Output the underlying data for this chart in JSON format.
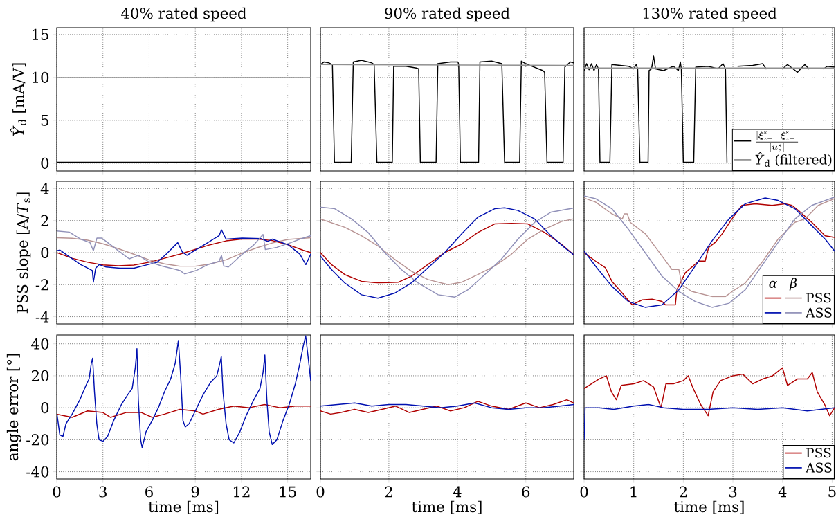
{
  "chart_data": [
    {
      "type": "line",
      "title": "40% rated speed",
      "ylabel": "*Ŷ*$_{d}$ [mA/V]",
      "xlim": [
        0,
        16.5
      ],
      "xticks": [
        0,
        3,
        6,
        9,
        12,
        15
      ],
      "ylim": [
        -0.9,
        15.8
      ],
      "yticks": [
        0,
        5,
        10,
        15
      ],
      "grid": true,
      "tick_labels": "y",
      "series": [
        {
          "color": "#000000",
          "x": [
            0,
            16.5
          ],
          "values": [
            0.1,
            0.1
          ]
        },
        {
          "color": "#909090",
          "x": [
            0,
            16.5
          ],
          "values": [
            10,
            10
          ]
        }
      ]
    },
    {
      "type": "line",
      "title": "90% rated speed",
      "xlim": [
        0,
        7.4
      ],
      "xticks": [
        0,
        2,
        4,
        6
      ],
      "ylim": [
        -0.9,
        15.8
      ],
      "yticks": [
        0,
        5,
        10,
        15
      ],
      "grid": true,
      "tick_labels": false,
      "series": [
        {
          "color": "#000000",
          "x": [
            0,
            0.1,
            0.25,
            0.35,
            0.41,
            0.9,
            0.96,
            1.2,
            1.5,
            1.57,
            1.65,
            2.1,
            2.14,
            2.5,
            2.8,
            2.87,
            2.92,
            3.38,
            3.43,
            3.8,
            4.02,
            4.04,
            4.09,
            4.62,
            4.66,
            5.0,
            5.3,
            5.38,
            5.82,
            5.87,
            6.0,
            6.5,
            6.55,
            6.62,
            7.09,
            7.14,
            7.3,
            7.4
          ],
          "values": [
            11.5,
            11.8,
            11.7,
            11.5,
            0.1,
            0.1,
            11.8,
            12.0,
            11.7,
            11.5,
            0.1,
            0.1,
            11.3,
            11.3,
            11.1,
            11.0,
            0.1,
            0.1,
            11.6,
            11.8,
            11.8,
            11.5,
            0.1,
            0.1,
            11.8,
            11.9,
            11.6,
            0.1,
            0.1,
            11.9,
            11.6,
            10.8,
            10.6,
            0.1,
            0.1,
            11.2,
            11.8,
            11.7
          ]
        },
        {
          "color": "#909090",
          "x": [
            0,
            7.4
          ],
          "values": [
            11.5,
            11.4
          ]
        }
      ]
    },
    {
      "type": "line",
      "title": "130% rated speed",
      "xlim": [
        0,
        5.05
      ],
      "xticks": [
        0,
        1,
        2,
        3,
        4,
        5
      ],
      "ylim": [
        -0.9,
        15.8
      ],
      "yticks": [
        0,
        5,
        10,
        15
      ],
      "grid": true,
      "tick_labels": false,
      "legend": "bottom right",
      "series": [
        {
          "name": "\\frac{|\\boldsymbol{\\xi}^{s}_{z+}-\\boldsymbol{\\xi}^{s}_{z-}|}{|\\boldsymbol{u}^{s}_{z}|}",
          "color": "#000000",
          "x": [
            0,
            0.05,
            0.1,
            0.15,
            0.2,
            0.25,
            0.29,
            0.32,
            0.52,
            0.56,
            0.9,
            1.0,
            1.05,
            1.08,
            1.125,
            1.29,
            1.31,
            1.36,
            1.4,
            1.44,
            1.6,
            1.8,
            1.9,
            1.94,
            1.96,
            2.0,
            2.21,
            2.25,
            2.5,
            2.7,
            2.8,
            2.85,
            2.88,
            3.07,
            3.1,
            3.4,
            3.6,
            3.67,
            3.7,
            3.97,
            4.0,
            4.1,
            4.3,
            4.45,
            4.53,
            4.56,
            4.8,
            4.83,
            4.9,
            5.05
          ],
          "values": [
            10.8,
            11.6,
            10.9,
            11.6,
            10.8,
            11.5,
            11.0,
            0.1,
            0.1,
            11.5,
            11.3,
            11.0,
            11.5,
            11.0,
            0.1,
            0.1,
            10.8,
            11.0,
            12.5,
            11.0,
            10.8,
            11.3,
            10.8,
            11.8,
            11.0,
            0.1,
            0.1,
            11.2,
            11.3,
            11.0,
            11.6,
            11.0,
            0.1,
            null,
            11.3,
            11.4,
            11.6,
            11.0,
            null,
            null,
            11.0,
            11.5,
            10.6,
            11.5,
            11.0,
            null,
            null,
            11.0,
            11.3,
            11.2
          ]
        },
        {
          "name": "*Ŷ*$_{d}$ (filtered)",
          "color": "#909090",
          "x": [
            0,
            5.05
          ],
          "values": [
            11.1,
            11.1
          ]
        }
      ]
    },
    {
      "type": "line",
      "ylabel": "PSS slope [A/*T*$_{s}$]",
      "xlim": [
        0,
        16.5
      ],
      "xticks": [
        0,
        3,
        6,
        9,
        12,
        15
      ],
      "ylim": [
        -4.45,
        4.45
      ],
      "yticks": [
        -4,
        -2,
        0,
        2,
        4
      ],
      "grid": true,
      "tick_labels": "y",
      "series": [
        {
          "color": "#b00000",
          "x": [
            0,
            1,
            2,
            3,
            4,
            5,
            6,
            7,
            8,
            9,
            10,
            11,
            12,
            13,
            14,
            15,
            16,
            16.5
          ],
          "values": [
            0,
            -0.35,
            -0.6,
            -0.77,
            -0.82,
            -0.78,
            -0.6,
            -0.35,
            -0.1,
            0.2,
            0.5,
            0.73,
            0.84,
            0.85,
            0.75,
            0.5,
            0.15,
            0
          ]
        },
        {
          "color": "#b89494",
          "x": [
            0,
            1,
            2,
            3,
            4,
            5,
            6,
            7,
            8,
            9,
            10,
            11,
            12,
            13,
            14,
            15,
            16.5
          ],
          "values": [
            0.93,
            0.9,
            0.78,
            0.55,
            0.25,
            -0.1,
            -0.45,
            -0.7,
            -0.85,
            -0.85,
            -0.7,
            -0.45,
            -0.05,
            0.3,
            0.6,
            0.82,
            0.93
          ]
        },
        {
          "color": "#0010b0",
          "x": [
            0,
            0.21,
            0.81,
            1.56,
            2.01,
            2.31,
            2.38,
            2.53,
            2.76,
            3.21,
            4.11,
            5.01,
            5.31,
            5.91,
            6.51,
            7.11,
            7.71,
            7.86,
            8.16,
            8.46,
            9.06,
            9.81,
            10.55,
            10.7,
            11.0,
            12.05,
            13.25,
            13.7,
            14.0,
            15.05,
            15.8,
            16.18,
            16.5
          ],
          "values": [
            0.12,
            0.16,
            -0.25,
            -0.75,
            -0.97,
            -1.12,
            -1.84,
            -0.97,
            -0.75,
            -0.9,
            -0.97,
            -0.97,
            -0.9,
            -0.75,
            -0.61,
            -0.1,
            0.48,
            0.62,
            0.04,
            -0.17,
            0.19,
            0.62,
            1.06,
            1.42,
            0.84,
            0.91,
            0.88,
            0.7,
            0.84,
            0.48,
            -0.1,
            -0.75,
            -0.1
          ]
        },
        {
          "color": "#9090b8",
          "x": [
            0,
            0.81,
            1.56,
            2.16,
            2.38,
            2.61,
            2.91,
            3.51,
            4.11,
            4.71,
            5.31,
            5.91,
            6.81,
            8.01,
            8.31,
            9.06,
            9.81,
            10.55,
            10.7,
            10.85,
            11.15,
            12.05,
            12.8,
            13.4,
            13.55,
            14.3,
            15.2,
            15.8,
            16.5
          ],
          "values": [
            1.35,
            1.28,
            0.84,
            0.62,
            0.12,
            0.91,
            0.91,
            0.48,
            0.04,
            -0.39,
            -0.17,
            -0.54,
            -0.83,
            -1.12,
            -1.33,
            -1.12,
            -0.75,
            -0.54,
            -0.17,
            -0.83,
            -0.9,
            -0.1,
            0.48,
            1.13,
            0.19,
            0.33,
            0.62,
            0.84,
            1.06
          ]
        }
      ]
    },
    {
      "type": "line",
      "xlim": [
        0,
        7.4
      ],
      "xticks": [
        0,
        2,
        4,
        6
      ],
      "ylim": [
        -4.45,
        4.45
      ],
      "yticks": [
        -4,
        -2,
        0,
        2,
        4
      ],
      "grid": true,
      "tick_labels": false,
      "series": [
        {
          "color": "#b00000",
          "x": [
            0,
            0.32,
            0.71,
            1.2,
            1.68,
            2.27,
            2.66,
            3.14,
            3.63,
            4.12,
            4.6,
            5.09,
            5.58,
            6.06,
            6.55,
            7.04,
            7.38
          ],
          "values": [
            0,
            -0.74,
            -1.37,
            -1.79,
            -1.89,
            -1.85,
            -1.47,
            -0.74,
            0,
            0.53,
            1.26,
            1.79,
            1.83,
            1.79,
            1.26,
            0.53,
            -0.1
          ]
        },
        {
          "color": "#b89494",
          "x": [
            0,
            0.71,
            1.2,
            1.68,
            2.17,
            2.66,
            3.14,
            3.73,
            4.12,
            4.6,
            5.09,
            5.58,
            6.06,
            6.55,
            7.04,
            7.38
          ],
          "values": [
            2.1,
            1.58,
            1.05,
            0.42,
            -0.42,
            -1.16,
            -1.68,
            -2.0,
            -1.85,
            -1.37,
            -0.84,
            -0.1,
            0.84,
            1.47,
            1.94,
            2.1
          ]
        },
        {
          "color": "#0010b0",
          "x": [
            0,
            0.32,
            0.71,
            1.2,
            1.68,
            2.17,
            2.66,
            3.14,
            3.63,
            4.12,
            4.6,
            5.09,
            5.38,
            5.77,
            6.26,
            6.74,
            7.13,
            7.38
          ],
          "values": [
            -0.21,
            -1.05,
            -1.89,
            -2.63,
            -2.84,
            -2.53,
            -1.89,
            -0.95,
            0,
            1.16,
            2.21,
            2.74,
            2.8,
            2.63,
            2.1,
            1.05,
            0.32,
            -0.1
          ]
        },
        {
          "color": "#9090b8",
          "x": [
            0,
            0.42,
            0.91,
            1.39,
            1.88,
            2.36,
            2.85,
            3.44,
            3.92,
            4.31,
            4.8,
            5.28,
            5.77,
            6.26,
            6.74,
            7.38
          ],
          "values": [
            2.84,
            2.74,
            2.1,
            1.26,
            0,
            -1.05,
            -1.89,
            -2.63,
            -2.78,
            -2.32,
            -1.37,
            -0.42,
            0.84,
            1.89,
            2.53,
            2.78
          ]
        }
      ]
    },
    {
      "type": "line",
      "xlim": [
        0,
        5.05
      ],
      "xticks": [
        0,
        1,
        2,
        3,
        4,
        5
      ],
      "ylim": [
        -4.45,
        4.45
      ],
      "yticks": [
        -4,
        -2,
        0,
        2,
        4
      ],
      "grid": true,
      "tick_labels": false,
      "legend": "bottom right",
      "annotations": [
        "*α*",
        "*β*"
      ],
      "series": [
        {
          "color": "#b00000",
          "x": [
            0,
            0.23,
            0.43,
            0.56,
            0.77,
            0.97,
            1.17,
            1.37,
            1.57,
            1.64,
            1.84,
            1.87,
            2.04,
            2.31,
            2.44,
            2.51,
            2.64,
            2.78,
            2.98,
            3.18,
            3.45,
            3.79,
            4.05,
            4.19,
            4.32,
            4.59,
            4.86,
            5.05
          ],
          "values": [
            0,
            -0.53,
            -0.95,
            -1.79,
            -2.53,
            -3.26,
            -2.95,
            -2.9,
            -3.05,
            -3.26,
            -3.26,
            -2.32,
            -1.26,
            -0.53,
            -0.53,
            0.32,
            0.63,
            1.16,
            2.1,
            2.95,
            3.05,
            2.95,
            3.05,
            2.95,
            2.63,
            1.89,
            1.05,
            0.95
          ]
        },
        {
          "name": "PSS",
          "color": "#b89494",
          "x": [
            0,
            0.23,
            0.56,
            0.77,
            0.81,
            0.87,
            0.93,
            1.24,
            1.57,
            1.77,
            1.91,
            1.97,
            2.17,
            2.58,
            2.85,
            2.99,
            3.25,
            3.58,
            3.91,
            4.25,
            4.45,
            4.72,
            5.05
          ],
          "values": [
            3.41,
            3.16,
            2.42,
            2.1,
            2.42,
            2.42,
            1.89,
            1.16,
            -0.21,
            -1.05,
            -1.05,
            -2.0,
            -2.42,
            -2.74,
            -2.74,
            -2.42,
            -1.89,
            -0.63,
            0.84,
            1.89,
            2.1,
            2.95,
            3.37
          ]
        },
        {
          "color": "#0010b0",
          "x": [
            0,
            0.23,
            0.56,
            0.89,
            1.23,
            1.57,
            1.91,
            2.24,
            2.58,
            2.92,
            3.25,
            3.65,
            3.91,
            4.25,
            4.59,
            4.86,
            5.05
          ],
          "values": [
            0.1,
            -0.84,
            -2.1,
            -3.05,
            -3.41,
            -3.26,
            -2.32,
            -0.84,
            0.74,
            2.1,
            3.05,
            3.41,
            3.26,
            2.74,
            1.68,
            0.84,
            0.1
          ]
        },
        {
          "name": "ASS",
          "color": "#9090b8",
          "x": [
            0,
            0.23,
            0.56,
            0.89,
            1.23,
            1.57,
            1.91,
            2.24,
            2.58,
            2.92,
            3.25,
            3.58,
            3.91,
            4.25,
            4.59,
            5.05
          ],
          "values": [
            3.54,
            3.37,
            2.74,
            1.47,
            0,
            -1.47,
            -2.42,
            -3.05,
            -3.41,
            -3.16,
            -2.32,
            -0.84,
            0.63,
            2.1,
            2.95,
            3.47
          ]
        }
      ]
    },
    {
      "type": "line",
      "xlabel": "time [ms]",
      "ylabel": "angle error [°]",
      "xlim": [
        0,
        16.5
      ],
      "xticks": [
        0,
        3,
        6,
        9,
        12,
        15
      ],
      "ylim": [
        -44.5,
        45.5
      ],
      "yticks": [
        -40,
        -20,
        0,
        20,
        40
      ],
      "grid": true,
      "series": [
        {
          "color": "#b00000",
          "x": [
            0,
            1,
            2,
            3,
            3.5,
            4.5,
            5.5,
            6.2,
            7,
            8,
            9,
            9.5,
            10.5,
            11.5,
            12.5,
            13.5,
            14.5,
            15.5,
            16.5
          ],
          "values": [
            -4,
            -6,
            -2,
            -3,
            -6,
            -3,
            -3,
            -6,
            -4,
            -1,
            -2,
            -4,
            -1,
            1,
            0,
            2,
            0,
            1,
            1
          ]
        },
        {
          "color": "#0010b0",
          "x": [
            0,
            0.2,
            0.4,
            0.6,
            1.0,
            1.5,
            1.9,
            2.1,
            2.25,
            2.33,
            2.45,
            2.6,
            2.75,
            3.0,
            3.3,
            3.7,
            4.2,
            4.6,
            4.9,
            5.1,
            5.21,
            5.3,
            5.45,
            5.55,
            5.8,
            6.2,
            6.6,
            7.0,
            7.4,
            7.7,
            7.9,
            8.05,
            8.2,
            8.35,
            8.6,
            9.0,
            9.5,
            10.0,
            10.4,
            10.6,
            10.69,
            10.8,
            11.0,
            11.2,
            11.5,
            11.9,
            12.3,
            12.8,
            13.2,
            13.4,
            13.52,
            13.65,
            13.8,
            14.0,
            14.3,
            14.7,
            15.1,
            15.5,
            15.8,
            16.0,
            16.17,
            16.35,
            16.5
          ],
          "values": [
            -3,
            -17,
            -18,
            -10,
            -4,
            5,
            14,
            18,
            28,
            31,
            10,
            -10,
            -20,
            -21,
            -18,
            -8,
            2,
            8,
            12,
            25,
            37,
            5,
            -20,
            -25,
            -15,
            -8,
            0,
            10,
            18,
            28,
            42,
            20,
            -8,
            -12,
            -10,
            -2,
            8,
            16,
            20,
            28,
            32,
            10,
            -10,
            -20,
            -22,
            -15,
            -5,
            5,
            12,
            22,
            33,
            5,
            -15,
            -23,
            -20,
            -8,
            2,
            15,
            28,
            38,
            45,
            30,
            17
          ]
        }
      ]
    },
    {
      "type": "line",
      "xlabel": "time [ms]",
      "xlim": [
        0,
        7.4
      ],
      "xticks": [
        0,
        2,
        4,
        6
      ],
      "ylim": [
        -44.5,
        45.5
      ],
      "yticks": [
        -40,
        -20,
        0,
        20,
        40
      ],
      "grid": true,
      "tick_labels": "x",
      "series": [
        {
          "color": "#b00000",
          "x": [
            0,
            0.3,
            0.6,
            1.0,
            1.4,
            1.8,
            2.2,
            2.6,
            3.0,
            3.4,
            3.8,
            4.2,
            4.6,
            5.0,
            5.5,
            6.0,
            6.4,
            6.8,
            7.2,
            7.4
          ],
          "values": [
            -2,
            -4,
            -3,
            -1,
            -3,
            -1,
            1,
            -3,
            -1,
            1,
            -2,
            0,
            4,
            1,
            -1,
            3,
            0,
            2,
            5,
            3
          ]
        },
        {
          "color": "#0010b0",
          "x": [
            0,
            0.5,
            1.0,
            1.5,
            2.0,
            2.5,
            3.0,
            3.5,
            4.0,
            4.5,
            5.0,
            5.5,
            6.0,
            6.5,
            7.0,
            7.4
          ],
          "values": [
            1,
            2,
            3,
            1,
            2,
            2,
            1,
            0,
            1,
            3,
            0,
            -1,
            0,
            0,
            1,
            2
          ]
        }
      ]
    },
    {
      "type": "line",
      "xlabel": "time [ms]",
      "xlim": [
        0,
        5.05
      ],
      "xticks": [
        0,
        1,
        2,
        3,
        4,
        5
      ],
      "ylim": [
        -44.5,
        45.5
      ],
      "yticks": [
        -40,
        -20,
        0,
        20,
        40
      ],
      "grid": true,
      "tick_labels": "x",
      "legend": "bottom right",
      "series": [
        {
          "name": "PSS",
          "color": "#b00000",
          "x": [
            0,
            0.1,
            0.3,
            0.45,
            0.55,
            0.65,
            0.75,
            1.0,
            1.2,
            1.4,
            1.55,
            1.65,
            1.8,
            2.0,
            2.1,
            2.2,
            2.35,
            2.5,
            2.6,
            2.75,
            3.0,
            3.2,
            3.4,
            3.6,
            3.8,
            4.0,
            4.1,
            4.3,
            4.5,
            4.6,
            4.7,
            4.85,
            4.95,
            5.05
          ],
          "values": [
            12,
            14,
            18,
            20,
            10,
            5,
            14,
            15,
            17,
            13,
            0,
            15,
            15,
            17,
            20,
            12,
            2,
            -5,
            10,
            17,
            20,
            21,
            15,
            18,
            20,
            25,
            14,
            18,
            18,
            22,
            10,
            2,
            -5,
            0
          ]
        },
        {
          "name": "ASS",
          "color": "#0010b0",
          "x": [
            0,
            0.02,
            0.3,
            0.6,
            1.0,
            1.3,
            1.6,
            2.0,
            2.5,
            3.0,
            3.5,
            4.0,
            4.5,
            5.05
          ],
          "values": [
            -20,
            0,
            0,
            -1,
            1,
            2,
            0,
            -1,
            -1,
            0,
            -1,
            0,
            -2,
            0
          ]
        }
      ]
    }
  ]
}
